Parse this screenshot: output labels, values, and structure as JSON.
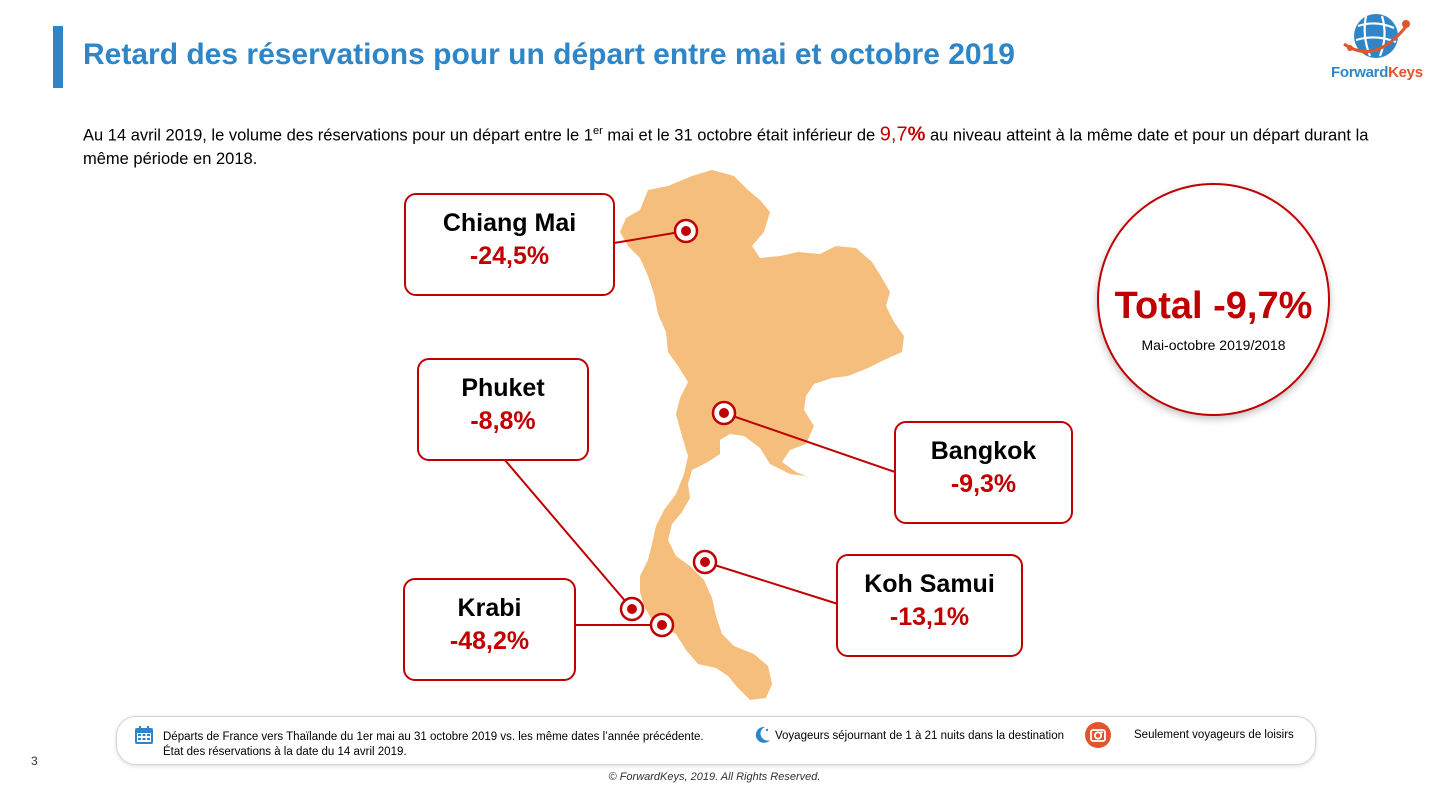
{
  "header": {
    "title": "Retard des réservations pour un départ entre mai et octobre 2019",
    "logo_text_part1": "Forward",
    "logo_text_part2": "Keys"
  },
  "intro": {
    "part1": "Au 14 avril 2019, le volume des réservations pour un départ entre le 1",
    "sup": "er",
    "part2": " mai et le 31 octobre était inférieur de ",
    "highlight_num": "9,7",
    "highlight_pct": "%",
    "part3": " au niveau atteint à la même date et pour un départ durant la même période en 2018."
  },
  "cities": [
    {
      "name": "Chiang Mai",
      "value": "-24,5%"
    },
    {
      "name": "Phuket",
      "value": "-8,8%"
    },
    {
      "name": "Bangkok",
      "value": "-9,3%"
    },
    {
      "name": "Koh Samui",
      "value": "-13,1%"
    },
    {
      "name": "Krabi",
      "value": "-48,2%"
    }
  ],
  "total": {
    "label": "Total -9,7%",
    "sub": "Mai-octobre 2019/2018"
  },
  "footer": {
    "note1_line1": "Départs de France vers Thaïlande du 1er mai au 31 octobre 2019 vs. les même dates l’année précédente.",
    "note1_line2": "État des réservations à la date du 14 avril 2019.",
    "note2": "Voyageurs séjournant de 1 à 21 nuits dans la destination",
    "note3": "Seulement voyageurs de loisirs",
    "page_number": "3",
    "copyright": "© ForwardKeys, 2019. All Rights Reserved."
  },
  "colors": {
    "accent_blue": "#2e86c8",
    "red": "#c00000",
    "map_fill": "#f6be7d",
    "logo_orange": "#e2542c"
  },
  "icons": [
    "calendar-icon",
    "moon-icon",
    "camera-icon",
    "target-marker-icon",
    "globe-logo-icon"
  ]
}
